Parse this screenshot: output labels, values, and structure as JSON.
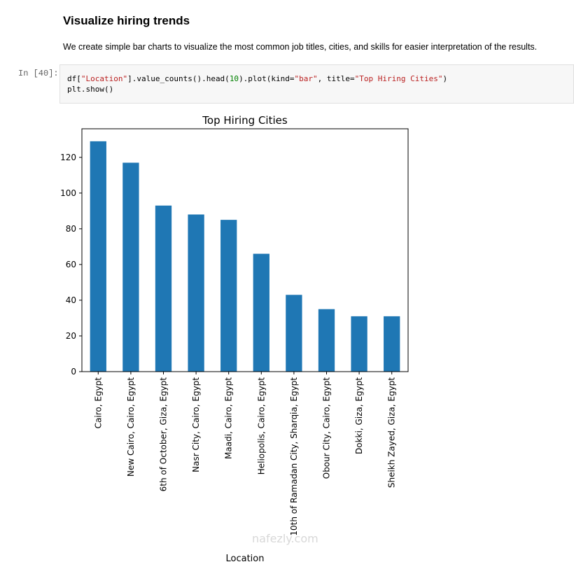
{
  "markdown": {
    "heading": "Visualize hiring trends",
    "text": "We create simple bar charts to visualize the most common job titles, cities, and skills for easier interpretation of the results."
  },
  "cell": {
    "prompt": "In [40]:",
    "code": {
      "t1": "df[",
      "s1": "\"Location\"",
      "t2": "].value_counts().head(",
      "n1": "10",
      "t3": ").plot(kind=",
      "s2": "\"bar\"",
      "t4": ", title=",
      "s3": "\"Top Hiring Cities\"",
      "t5": ")",
      "line2": "plt.show()"
    }
  },
  "watermark": "nafezly.com",
  "chart_data": {
    "type": "bar",
    "title": "Top Hiring Cities",
    "xlabel": "Location",
    "ylabel": "",
    "ylim": [
      0,
      136
    ],
    "yticks": [
      0,
      20,
      40,
      60,
      80,
      100,
      120
    ],
    "categories": [
      "Cairo, Egypt",
      "New Cairo, Cairo, Egypt",
      "6th of October, Giza, Egypt",
      "Nasr City, Cairo, Egypt",
      "Maadi, Cairo, Egypt",
      "Heliopolis, Cairo, Egypt",
      "10th of Ramadan City, Sharqia, Egypt",
      "Obour City, Cairo, Egypt",
      "Dokki, Giza, Egypt",
      "Sheikh Zayed, Giza, Egypt"
    ],
    "values": [
      129,
      117,
      93,
      88,
      85,
      66,
      43,
      35,
      31,
      31
    ],
    "color": "#1f77b4"
  }
}
